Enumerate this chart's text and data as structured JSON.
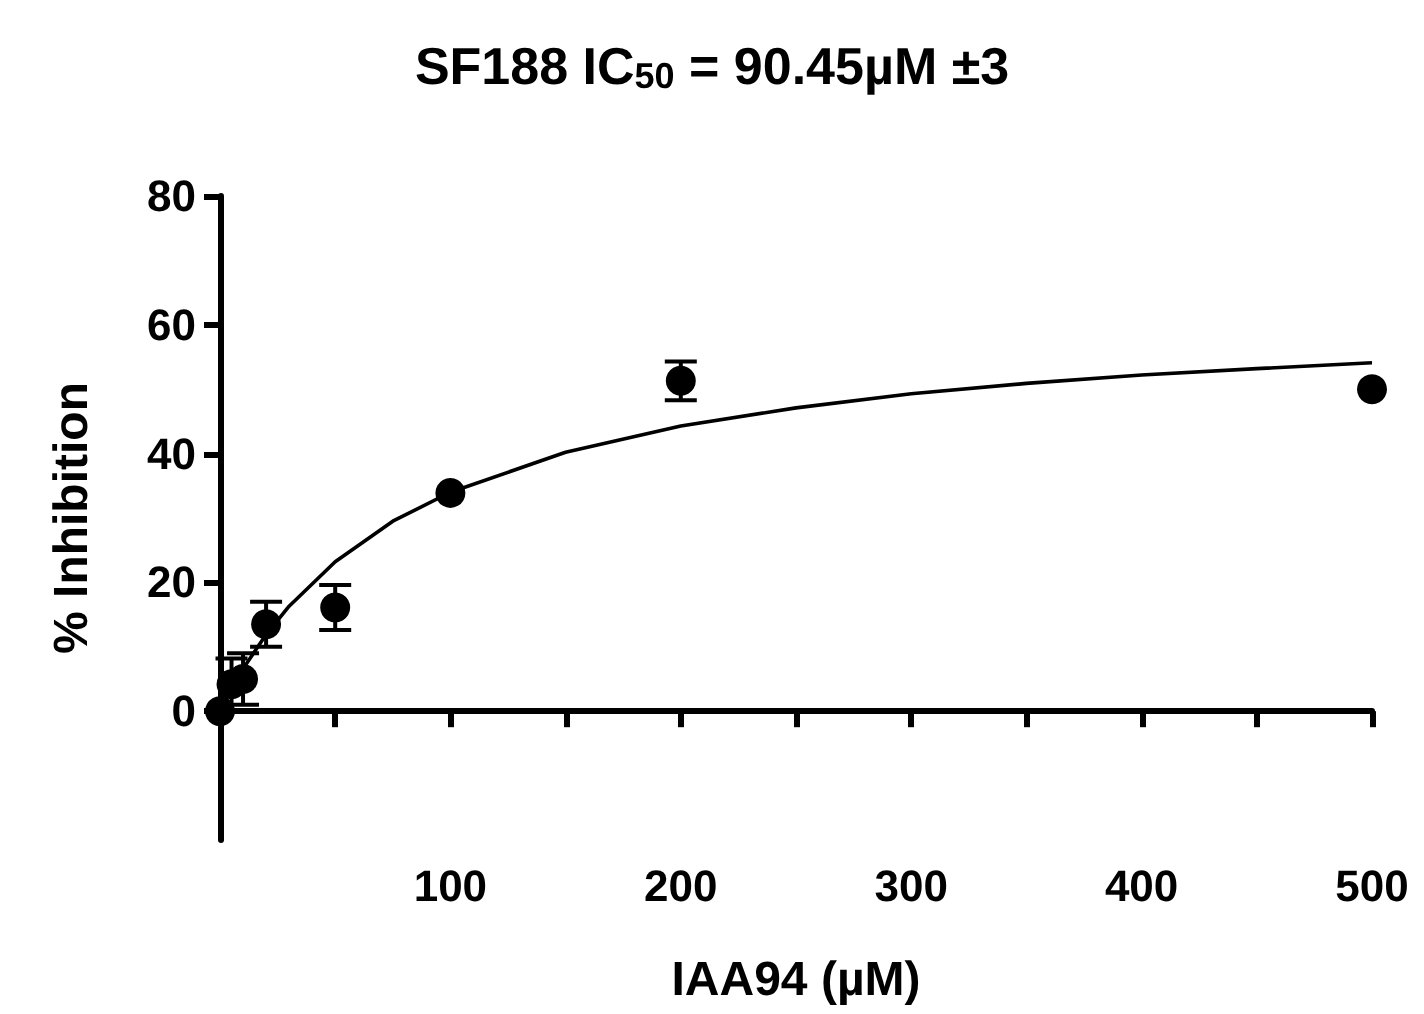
{
  "chart_data": {
    "type": "scatter",
    "title": "SF188 IC$_{50}$ = 90.45µM ±3",
    "xlabel": "IAA94 (µM)",
    "ylabel": "% Inhibition",
    "xlim": [
      0,
      500
    ],
    "xticks": [
      {
        "value": 0,
        "label": null
      },
      {
        "value": 50,
        "label": null
      },
      100,
      {
        "value": 150,
        "label": null
      },
      200,
      {
        "value": 250,
        "label": null
      },
      300,
      {
        "value": 350,
        "label": null
      },
      400,
      {
        "value": 450,
        "label": null
      },
      500
    ],
    "ylim": [
      -20,
      80
    ],
    "yticks": [
      0,
      20,
      40,
      60,
      80
    ],
    "series": [
      {
        "color": "#000000",
        "marker": "circle",
        "x": [
          0,
          5,
          10,
          20,
          50,
          100,
          200,
          500
        ],
        "values": [
          0,
          4.2,
          5,
          13.5,
          16.1,
          33.9,
          51.3,
          50
        ],
        "errors": [
          null,
          4,
          4,
          3.5,
          3.5,
          null,
          3,
          null
        ]
      },
      {
        "type": "line",
        "color": "#000000",
        "marker": "none",
        "x": [
          2,
          5,
          10,
          20,
          30,
          50,
          75,
          100,
          150,
          200,
          250,
          300,
          350,
          400,
          450,
          500
        ],
        "values": [
          1.4,
          3.5,
          6.6,
          11.9,
          16.3,
          23.2,
          29.5,
          34.0,
          40.2,
          44.3,
          47.1,
          49.3,
          50.9,
          52.2,
          53.2,
          54.1
        ]
      }
    ]
  }
}
